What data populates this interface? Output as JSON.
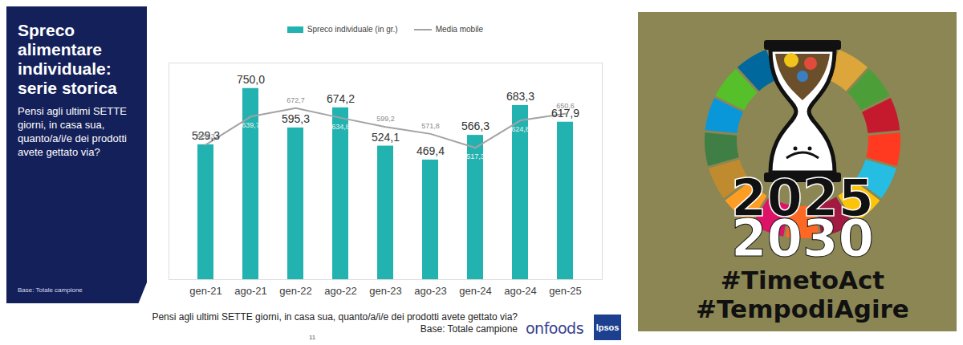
{
  "chart_data": {
    "type": "bar",
    "categories": [
      "gen-21",
      "ago-21",
      "gen-22",
      "ago-22",
      "gen-23",
      "ago-23",
      "gen-24",
      "ago-24",
      "gen-25"
    ],
    "series": [
      {
        "name": "Spreco individuale (in gr.)",
        "type": "bar",
        "color": "#22b3b1",
        "values": [
          529.3,
          750.0,
          595.3,
          674.2,
          524.1,
          469.4,
          566.3,
          683.3,
          617.9
        ],
        "value_labels": [
          "529,3",
          "750,0",
          "595,3",
          "674,2",
          "524,1",
          "469,4",
          "566,3",
          "683,3",
          "617,9"
        ]
      },
      {
        "name": "Media mobile",
        "type": "line",
        "color": "#a3a3a3",
        "values": [
          529.3,
          639.7,
          672.7,
          634.8,
          599.2,
          571.8,
          517.3,
          624.8,
          650.6
        ],
        "value_labels": [
          "529,3",
          "639,7",
          "672,7",
          "634,8",
          "599,2",
          "571,8",
          "517,3",
          "624,8",
          "650,6"
        ]
      }
    ],
    "ylim": [
      0,
      850
    ],
    "tick_labels": "x",
    "data_labels": true,
    "legend": "top"
  },
  "panel": {
    "title": "Spreco alimentare individuale: serie storica",
    "question": "Pensi agli ultimi SETTE giorni, in casa sua, quanto/a/i/e dei prodotti avete gettato via?",
    "base": "Base: Totale campione"
  },
  "footer": {
    "question": "Pensi agli ultimi SETTE giorni, in casa sua, quanto/a/i/e dei prodotti avete gettato via?",
    "base": "Base: Totale campione",
    "page_number": "11",
    "logos": [
      "onfoods",
      "Ipsos"
    ]
  },
  "badge": {
    "years": [
      "2025",
      "2030"
    ],
    "hashtags": [
      "#TimetoAct",
      "#TempodiAgire"
    ]
  }
}
